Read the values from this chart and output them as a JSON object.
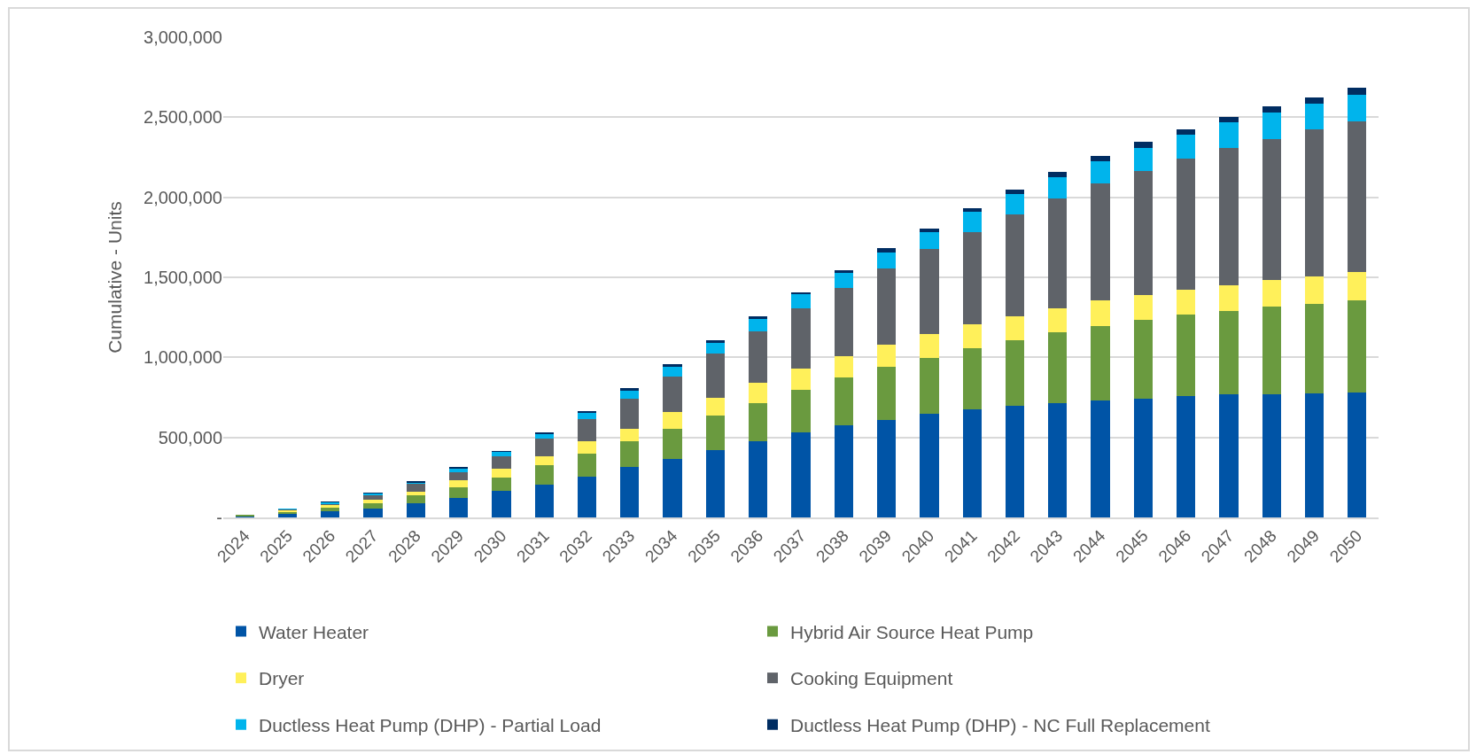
{
  "chart_data": {
    "type": "bar",
    "stacked": true,
    "ylabel": "Cumulative - Units",
    "categories": [
      "2024",
      "2025",
      "2026",
      "2027",
      "2028",
      "2029",
      "2030",
      "2031",
      "2032",
      "2033",
      "2034",
      "2035",
      "2036",
      "2037",
      "2038",
      "2039",
      "2040",
      "2041",
      "2042",
      "2043",
      "2044",
      "2045",
      "2046",
      "2047",
      "2048",
      "2049",
      "2050"
    ],
    "series": [
      {
        "name": "Water Heater",
        "color": "#0054a6",
        "values": [
          8000,
          22000,
          40000,
          57000,
          88000,
          123000,
          165000,
          205000,
          256000,
          313000,
          363000,
          421000,
          474000,
          531000,
          573000,
          608000,
          648000,
          674000,
          698000,
          716000,
          731000,
          740000,
          758000,
          767000,
          767000,
          773000,
          782000
        ]
      },
      {
        "name": "Hybrid Air Source Heat Pump",
        "color": "#6a9a3f",
        "values": [
          6000,
          13000,
          20000,
          31000,
          51000,
          64000,
          82000,
          119000,
          141000,
          161000,
          192000,
          218000,
          240000,
          267000,
          300000,
          333000,
          350000,
          383000,
          410000,
          443000,
          467000,
          493000,
          509000,
          524000,
          549000,
          560000,
          575000
        ]
      },
      {
        "name": "Dryer",
        "color": "#fff05a",
        "values": [
          null,
          8000,
          15000,
          24000,
          24000,
          46000,
          59000,
          57000,
          77000,
          82000,
          101000,
          108000,
          126000,
          134000,
          134000,
          141000,
          150000,
          152000,
          150000,
          150000,
          159000,
          156000,
          156000,
          159000,
          167000,
          174000,
          176000
        ]
      },
      {
        "name": "Cooking Equipment",
        "color": "#5f6369",
        "values": [
          2000,
          8000,
          9000,
          26000,
          48000,
          48000,
          77000,
          110000,
          141000,
          185000,
          225000,
          275000,
          324000,
          375000,
          425000,
          476000,
          527000,
          573000,
          634000,
          683000,
          727000,
          775000,
          817000,
          859000,
          883000,
          919000,
          943000
        ]
      },
      {
        "name": "Ductless Heat Pump (DHP) - Partial Load",
        "color": "#00b4ec",
        "values": [
          2000,
          4000,
          9000,
          9000,
          7000,
          24000,
          24000,
          31000,
          40000,
          53000,
          59000,
          68000,
          77000,
          86000,
          93000,
          99000,
          106000,
          126000,
          126000,
          134000,
          143000,
          143000,
          152000,
          159000,
          161000,
          159000,
          167000
        ]
      },
      {
        "name": "Ductless Heat Pump (DHP) - NC Full Replacement",
        "color": "#002d62",
        "values": [
          1000,
          2000,
          4000,
          9000,
          7000,
          9000,
          9000,
          9000,
          11000,
          13000,
          15000,
          15000,
          15000,
          15000,
          22000,
          24000,
          26000,
          24000,
          31000,
          31000,
          31000,
          40000,
          31000,
          33000,
          40000,
          40000,
          40000
        ]
      }
    ],
    "ylim": [
      0,
      3000000
    ],
    "yticks": [
      {
        "value": 0,
        "label": "-"
      },
      {
        "value": 500000,
        "label": "500,000"
      },
      {
        "value": 1000000,
        "label": "1,000,000"
      },
      {
        "value": 1500000,
        "label": "1,500,000"
      },
      {
        "value": 2000000,
        "label": "2,000,000"
      },
      {
        "value": 2500000,
        "label": "2,500,000"
      },
      {
        "value": 3000000,
        "label": "3,000,000"
      }
    ],
    "grid": "y",
    "legend": "bottom"
  }
}
